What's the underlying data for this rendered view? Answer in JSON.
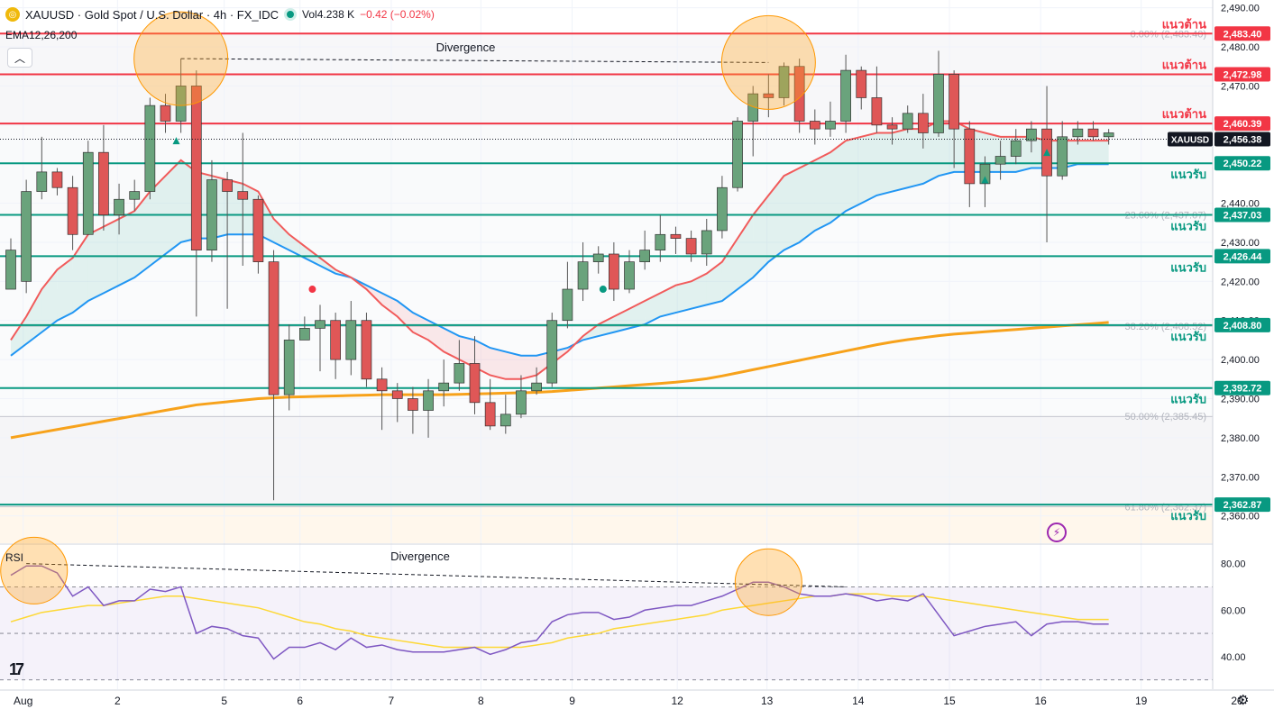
{
  "header": {
    "symbol": "XAUUSD · Gold Spot / U.S. Dollar · 4h · FX_IDC",
    "logo": "gold-coin-icon",
    "vol": "Vol4.238 K",
    "change": "−0.42 (−0.02%)"
  },
  "indicator_label": "EMA12,26,200",
  "rsi_label": "RSI",
  "chart_data": {
    "type": "candlestick",
    "price_axis": {
      "min": 2353,
      "max": 2492,
      "ticks": [
        2490,
        2480,
        2470,
        2460,
        2450,
        2440,
        2430,
        2420,
        2410,
        2400,
        2390,
        2380,
        2370,
        2360
      ]
    },
    "rsi_axis": {
      "min": 26,
      "max": 88,
      "ticks": [
        80,
        60,
        40
      ]
    },
    "x_ticks": [
      {
        "label": "Aug",
        "i": 0.8
      },
      {
        "label": "2",
        "i": 6.9
      },
      {
        "label": "5",
        "i": 13.8
      },
      {
        "label": "6",
        "i": 18.7
      },
      {
        "label": "7",
        "i": 24.6
      },
      {
        "label": "8",
        "i": 30.4
      },
      {
        "label": "9",
        "i": 36.3
      },
      {
        "label": "12",
        "i": 43.1
      },
      {
        "label": "13",
        "i": 48.9
      },
      {
        "label": "14",
        "i": 54.8
      },
      {
        "label": "15",
        "i": 60.7
      },
      {
        "label": "16",
        "i": 66.6
      },
      {
        "label": "19",
        "i": 73.1
      },
      {
        "label": "20",
        "i": 79.3
      }
    ],
    "candles": [
      [
        2418,
        2428,
        2418,
        2431
      ],
      [
        2420,
        2443,
        2417,
        2446
      ],
      [
        2443,
        2448,
        2441,
        2457
      ],
      [
        2448,
        2444,
        2442,
        2449
      ],
      [
        2444,
        2432,
        2428,
        2447
      ],
      [
        2432,
        2453,
        2432,
        2456
      ],
      [
        2453,
        2437,
        2433,
        2460
      ],
      [
        2437,
        2441,
        2432,
        2445
      ],
      [
        2441,
        2443,
        2438,
        2446
      ],
      [
        2443,
        2465,
        2441,
        2467
      ],
      [
        2465,
        2461,
        2458,
        2468
      ],
      [
        2461,
        2470,
        2458,
        2477
      ],
      [
        2470,
        2428,
        2411,
        2474
      ],
      [
        2428,
        2446,
        2425,
        2451
      ],
      [
        2446,
        2443,
        2413,
        2448
      ],
      [
        2443,
        2441,
        2424,
        2458
      ],
      [
        2441,
        2425,
        2422,
        2442
      ],
      [
        2425,
        2391,
        2364,
        2428
      ],
      [
        2391,
        2405,
        2387,
        2409
      ],
      [
        2405,
        2408,
        2405,
        2411
      ],
      [
        2408,
        2410,
        2397,
        2414
      ],
      [
        2410,
        2400,
        2395,
        2412
      ],
      [
        2400,
        2410,
        2396,
        2415
      ],
      [
        2410,
        2395,
        2393,
        2412
      ],
      [
        2395,
        2392,
        2382,
        2398
      ],
      [
        2392,
        2390,
        2384,
        2394
      ],
      [
        2390,
        2387,
        2381,
        2393
      ],
      [
        2387,
        2392,
        2380,
        2395
      ],
      [
        2392,
        2394,
        2388,
        2400
      ],
      [
        2394,
        2399,
        2392,
        2405
      ],
      [
        2399,
        2389,
        2386,
        2406
      ],
      [
        2389,
        2383,
        2382,
        2395
      ],
      [
        2383,
        2386,
        2381,
        2391
      ],
      [
        2386,
        2392,
        2385,
        2396
      ],
      [
        2392,
        2394,
        2391,
        2398
      ],
      [
        2394,
        2410,
        2393,
        2412
      ],
      [
        2410,
        2418,
        2408,
        2425
      ],
      [
        2418,
        2425,
        2415,
        2430
      ],
      [
        2425,
        2427,
        2422,
        2429
      ],
      [
        2427,
        2418,
        2415,
        2430
      ],
      [
        2418,
        2425,
        2417,
        2428
      ],
      [
        2425,
        2428,
        2423,
        2433
      ],
      [
        2428,
        2432,
        2425,
        2437
      ],
      [
        2432,
        2431,
        2427,
        2434
      ],
      [
        2431,
        2427,
        2425,
        2433
      ],
      [
        2427,
        2433,
        2424,
        2436
      ],
      [
        2433,
        2444,
        2431,
        2447
      ],
      [
        2444,
        2461,
        2443,
        2462
      ],
      [
        2461,
        2468,
        2452,
        2470
      ],
      [
        2468,
        2467,
        2462,
        2473
      ],
      [
        2467,
        2475,
        2465,
        2476
      ],
      [
        2475,
        2461,
        2458,
        2477
      ],
      [
        2461,
        2459,
        2455,
        2464
      ],
      [
        2459,
        2461,
        2457,
        2466
      ],
      [
        2461,
        2474,
        2458,
        2478
      ],
      [
        2474,
        2467,
        2464,
        2475
      ],
      [
        2467,
        2460,
        2458,
        2475
      ],
      [
        2460,
        2459,
        2455,
        2462
      ],
      [
        2459,
        2463,
        2458,
        2465
      ],
      [
        2463,
        2458,
        2454,
        2468
      ],
      [
        2458,
        2473,
        2457,
        2479
      ],
      [
        2473,
        2459,
        2449,
        2474
      ],
      [
        2459,
        2445,
        2439,
        2461
      ],
      [
        2445,
        2450,
        2439,
        2452
      ],
      [
        2450,
        2452,
        2446,
        2456
      ],
      [
        2452,
        2456,
        2450,
        2459
      ],
      [
        2456,
        2459,
        2453,
        2461
      ],
      [
        2459,
        2447,
        2430,
        2470
      ],
      [
        2447,
        2457,
        2446,
        2461
      ],
      [
        2457,
        2459,
        2455,
        2461
      ],
      [
        2459,
        2457,
        2456,
        2461
      ],
      [
        2457,
        2458,
        2455,
        2459
      ]
    ],
    "ema12": [
      2405,
      2411,
      2418,
      2423,
      2426,
      2432,
      2434,
      2436,
      2438,
      2443,
      2447,
      2451,
      2448,
      2447,
      2446,
      2445,
      2443,
      2436,
      2432,
      2429,
      2426,
      2423,
      2421,
      2418,
      2414,
      2411,
      2407,
      2405,
      2402,
      2400,
      2398,
      2396,
      2395,
      2395,
      2396,
      2399,
      2402,
      2406,
      2409,
      2411,
      2413,
      2415,
      2417,
      2419,
      2420,
      2422,
      2425,
      2431,
      2437,
      2442,
      2447,
      2449,
      2451,
      2453,
      2456,
      2457,
      2458,
      2458,
      2459,
      2459,
      2461,
      2461,
      2459,
      2458,
      2457,
      2457,
      2457,
      2456,
      2456,
      2456,
      2456,
      2456
    ],
    "ema26": [
      2401,
      2404,
      2407,
      2410,
      2412,
      2415,
      2417,
      2419,
      2421,
      2424,
      2427,
      2430,
      2431,
      2431,
      2432,
      2432,
      2432,
      2430,
      2428,
      2426,
      2424,
      2422,
      2421,
      2419,
      2417,
      2415,
      2412,
      2410,
      2408,
      2406,
      2405,
      2403,
      2402,
      2401,
      2401,
      2402,
      2403,
      2405,
      2406,
      2407,
      2408,
      2409,
      2411,
      2412,
      2413,
      2414,
      2415,
      2418,
      2421,
      2425,
      2428,
      2430,
      2433,
      2435,
      2438,
      2440,
      2442,
      2443,
      2444,
      2445,
      2447,
      2448,
      2448,
      2448,
      2448,
      2448,
      2449,
      2449,
      2449,
      2450,
      2450,
      2450
    ],
    "ema200": [
      2380,
      2380.7,
      2381.4,
      2382.1,
      2382.8,
      2383.5,
      2384.2,
      2384.9,
      2385.6,
      2386.3,
      2387,
      2387.7,
      2388.4,
      2388.8,
      2389.2,
      2389.6,
      2390,
      2390.2,
      2390.4,
      2390.5,
      2390.6,
      2390.7,
      2390.8,
      2390.9,
      2391,
      2391,
      2391,
      2391,
      2391,
      2391.1,
      2391.2,
      2391.3,
      2391.4,
      2391.5,
      2391.6,
      2391.8,
      2392.1,
      2392.4,
      2392.7,
      2393,
      2393.3,
      2393.6,
      2393.9,
      2394.2,
      2394.6,
      2395.1,
      2395.8,
      2396.6,
      2397.4,
      2398.2,
      2399,
      2399.8,
      2400.6,
      2401.4,
      2402.2,
      2403,
      2403.8,
      2404.5,
      2405.1,
      2405.6,
      2406.1,
      2406.5,
      2406.8,
      2407.1,
      2407.4,
      2407.7,
      2408,
      2408.3,
      2408.6,
      2408.9,
      2409.2,
      2409.5
    ],
    "rsi": [
      75,
      79,
      79,
      76,
      66,
      70,
      62,
      64,
      64,
      69,
      68,
      70,
      50,
      53,
      52,
      49,
      48,
      39,
      44,
      44,
      46,
      43,
      48,
      44,
      45,
      43,
      42,
      42,
      42,
      43,
      44,
      41,
      43,
      46,
      47,
      55,
      58,
      59,
      59,
      56,
      57,
      60,
      61,
      62,
      62,
      64,
      66,
      69,
      72,
      72,
      70,
      67,
      66,
      66,
      67,
      66,
      64,
      65,
      64,
      67,
      58,
      49,
      51,
      53,
      54,
      55,
      49,
      54,
      55,
      55,
      54,
      54
    ],
    "rsi_ma": [
      55,
      57,
      59,
      60,
      61,
      62,
      62,
      63,
      64,
      65,
      66,
      66,
      65,
      64,
      63,
      62,
      61,
      59,
      57,
      55,
      54,
      52,
      51,
      49,
      48,
      47,
      46,
      45,
      44,
      44,
      44,
      44,
      44,
      44,
      45,
      46,
      48,
      49,
      50,
      52,
      53,
      54,
      55,
      56,
      57,
      58,
      60,
      61,
      62,
      63,
      64,
      65,
      66,
      66,
      67,
      67,
      67,
      66,
      66,
      66,
      65,
      64,
      63,
      62,
      61,
      60,
      59,
      58,
      57,
      56,
      56,
      56
    ],
    "horizontal_levels": [
      {
        "price": 2483.4,
        "label": "แนวต้าน",
        "price_label": "2,483.40",
        "color": "#f23645"
      },
      {
        "price": 2472.98,
        "label": "แนวต้าน",
        "price_label": "2,472.98",
        "color": "#f23645"
      },
      {
        "price": 2460.39,
        "label": "แนวต้าน",
        "price_label": "2,460.39",
        "color": "#f23645"
      },
      {
        "price": 2450.22,
        "label": "แนวรับ",
        "price_label": "2,450.22",
        "color": "#089981"
      },
      {
        "price": 2437.03,
        "label": "แนวรับ",
        "price_label": "2,437.03",
        "color": "#089981"
      },
      {
        "price": 2426.44,
        "label": "แนวรับ",
        "price_label": "2,426.44",
        "color": "#089981"
      },
      {
        "price": 2408.8,
        "label": "แนวรับ",
        "price_label": "2,408.80",
        "color": "#089981"
      },
      {
        "price": 2392.72,
        "label": "แนวรับ",
        "price_label": "2,392.72",
        "color": "#089981"
      },
      {
        "price": 2362.87,
        "label": "แนวรับ",
        "price_label": "2,362.87",
        "color": "#089981"
      }
    ],
    "fib_levels": [
      {
        "price": 2483.4,
        "label": "0.00% (2,483.40)"
      },
      {
        "price": 2437.07,
        "label": "23.60% (2,437.07)"
      },
      {
        "price": 2408.52,
        "label": "38.20% (2,408.52)"
      },
      {
        "price": 2385.45,
        "label": "50.00% (2,385.45)"
      },
      {
        "price": 2362.37,
        "label": "61.80% (2,362.37)"
      }
    ],
    "current_price": {
      "price": 2456.38,
      "symbol": "XAUUSD",
      "label": "2,456.38"
    },
    "divergence_price": {
      "label": "Divergence",
      "from": {
        "i": 11,
        "p": 2477
      },
      "to": {
        "i": 49,
        "p": 2476
      }
    },
    "divergence_rsi": {
      "label": "Divergence",
      "from": {
        "i": 1,
        "p": 80
      },
      "to": {
        "i": 54,
        "p": 70
      }
    },
    "circles_price": [
      {
        "i": 11,
        "p": 2477
      },
      {
        "i": 49,
        "p": 2476
      }
    ],
    "circles_rsi": [
      {
        "i": 1.5,
        "p": 77
      },
      {
        "i": 49,
        "p": 72
      }
    ],
    "rsi_levels": [
      70,
      50,
      30
    ],
    "markers": [
      {
        "i": 10.7,
        "p": 2456,
        "type": "up",
        "color": "#089981"
      },
      {
        "i": 19.5,
        "p": 2418,
        "type": "dot",
        "color": "#f23645"
      },
      {
        "i": 38.3,
        "p": 2418,
        "type": "dot",
        "color": "#089981"
      },
      {
        "i": 63,
        "p": 2446,
        "type": "up",
        "color": "#089981"
      },
      {
        "i": 67,
        "p": 2453,
        "type": "up",
        "color": "#089981"
      }
    ]
  },
  "icons": {
    "alert": "lightning-icon",
    "settings": "gear-icon",
    "collapse": "chevron-up-icon",
    "tradingview": "tradingview-logo-icon"
  }
}
